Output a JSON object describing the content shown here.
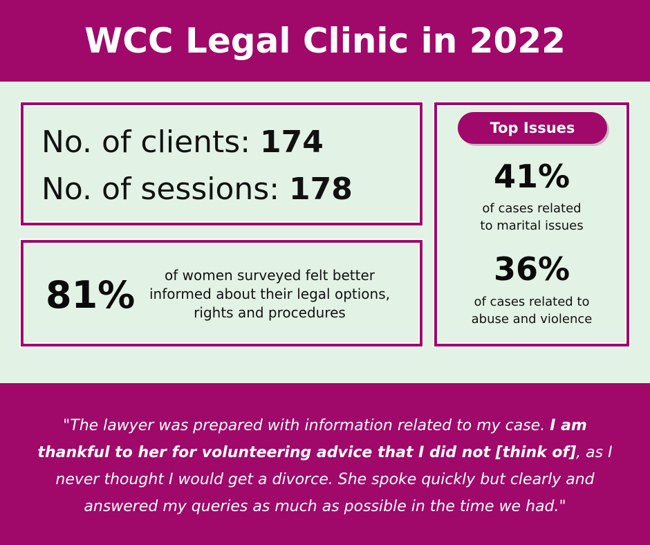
{
  "header": {
    "title": "WCC Legal Clinic in 2022"
  },
  "stats": {
    "clients_label": "No. of clients: ",
    "clients_value": "174",
    "sessions_label": "No. of sessions: ",
    "sessions_value": "178"
  },
  "survey": {
    "percent": "81%",
    "text": "of women surveyed felt better informed about their legal options, rights and procedures"
  },
  "top_issues": {
    "title": "Top Issues",
    "items": [
      {
        "percent": "41%",
        "desc_line1": "of cases related",
        "desc_line2": "to marital issues"
      },
      {
        "percent": "36%",
        "desc_line1": "of cases related to",
        "desc_line2": "abuse and violence"
      }
    ]
  },
  "quote": {
    "part1": "\"The lawyer was prepared with information related to my case. ",
    "bold": "I am thankful to her for volunteering advice that I did not [think of]",
    "part2": ", as I never thought I would get a divorce. She spoke quickly but clearly and answered my queries as much as possible in the time we had.\""
  },
  "colors": {
    "accent": "#a0086a",
    "background": "#e2f2e4"
  }
}
